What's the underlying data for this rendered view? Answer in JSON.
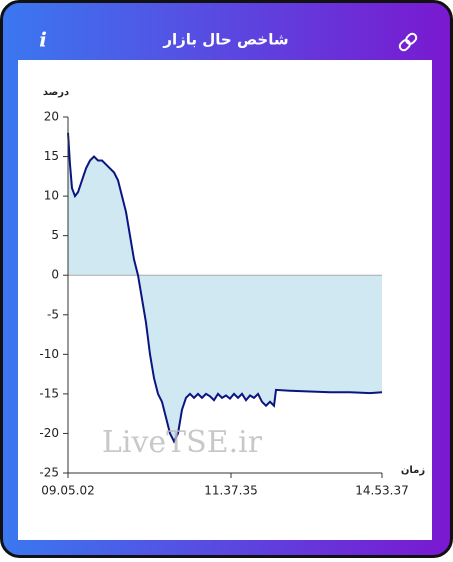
{
  "header": {
    "title": "شاخص حال بازار",
    "info": "i"
  },
  "chart_data": {
    "type": "line",
    "y_label": "درصد",
    "x_label": "زمان",
    "watermark": "LiveTSE.ir",
    "x": [
      0,
      2,
      4,
      7,
      10,
      14,
      18,
      22,
      26,
      30,
      34,
      38,
      42,
      46,
      50,
      54,
      58,
      62,
      66,
      70,
      74,
      78,
      82,
      86,
      90,
      94,
      98,
      102,
      106,
      110,
      114,
      118,
      122,
      126,
      130,
      134,
      138,
      142,
      146,
      150,
      154,
      158,
      162,
      166,
      170,
      174,
      178,
      182,
      186,
      190,
      194,
      198,
      202,
      206,
      208,
      222,
      242,
      262,
      282,
      302,
      314
    ],
    "series": [
      {
        "name": "شاخص",
        "color": "#0b1580",
        "values": [
          18,
          14,
          11,
          10,
          10.5,
          12,
          13.5,
          14.5,
          15,
          14.5,
          14.5,
          14,
          13.5,
          13,
          12,
          10,
          8,
          5,
          2,
          0,
          -3,
          -6,
          -10,
          -13,
          -15,
          -16,
          -18,
          -20,
          -21,
          -20,
          -17,
          -15.5,
          -15,
          -15.5,
          -15,
          -15.5,
          -15,
          -15.3,
          -15.8,
          -15,
          -15.5,
          -15.2,
          -15.6,
          -15,
          -15.5,
          -15,
          -15.8,
          -15.2,
          -15.5,
          -15,
          -16,
          -16.5,
          -16,
          -16.5,
          -14.5,
          -14.6,
          -14.7,
          -14.8,
          -14.8,
          -14.9,
          -14.8
        ]
      }
    ],
    "fill_color": "#cfe8f2",
    "xlim": [
      0,
      314
    ],
    "xticks": [
      {
        "value": 0,
        "label": "09.05.02"
      },
      {
        "value": 163,
        "label": "11.37.35"
      },
      {
        "value": 314,
        "label": "14.53.37"
      }
    ],
    "ylim": [
      -25,
      20
    ],
    "yticks": [
      20,
      15,
      10,
      5,
      0,
      -5,
      -10,
      -15,
      -20,
      -25
    ]
  }
}
